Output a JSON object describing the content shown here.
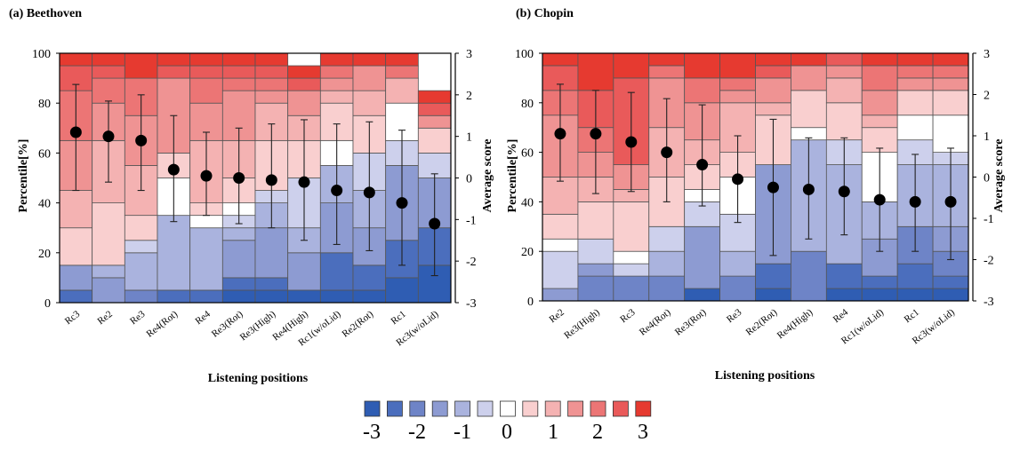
{
  "colors": [
    "#2f5db3",
    "#4b6ebd",
    "#6e84c7",
    "#8d9bd2",
    "#aab3de",
    "#cdd0ec",
    "#ffffff",
    "#f9cfcf",
    "#f4b2b2",
    "#ef9393",
    "#ec7575",
    "#e95a5a",
    "#e63a30"
  ],
  "legend": {
    "ticks": [
      "-3",
      "-2",
      "-1",
      "0",
      "1",
      "2",
      "3"
    ]
  },
  "chart_data": [
    {
      "type": "bar",
      "title": "(a) Beethoven",
      "xlabel": "Listening positions",
      "ylabel": "Percentile[%]",
      "y2label": "Average score",
      "ylim": [
        0,
        100
      ],
      "y2lim": [
        -3,
        3
      ],
      "yticks": [
        "0",
        "20",
        "40",
        "60",
        "80",
        "100"
      ],
      "y2ticks": [
        "-3",
        "-2",
        "-1",
        "0",
        "1",
        "2",
        "3"
      ],
      "categories": [
        "Rc3",
        "Re2",
        "Re3",
        "Re4(Rot)",
        "Re4",
        "Re3(Rot)",
        "Re3(High)",
        "Re4(High)",
        "Rc1(w/oLid)",
        "Re2(Rot)",
        "Rc1",
        "Rc3(w/oLid)"
      ],
      "stack_levels": [
        -3,
        -2.5,
        -2,
        -1.5,
        -1,
        -0.5,
        0,
        0.5,
        1,
        1.5,
        2,
        2.5,
        3
      ],
      "stacks": [
        [
          0,
          5,
          0,
          10,
          0,
          0,
          0,
          15,
          15,
          20,
          20,
          10,
          5
        ],
        [
          0,
          0,
          0,
          10,
          5,
          0,
          0,
          25,
          25,
          15,
          10,
          5,
          5
        ],
        [
          0,
          0,
          5,
          0,
          15,
          5,
          0,
          10,
          20,
          20,
          15,
          0,
          10
        ],
        [
          0,
          5,
          0,
          0,
          30,
          0,
          15,
          10,
          0,
          30,
          0,
          5,
          5
        ],
        [
          0,
          5,
          0,
          0,
          25,
          0,
          5,
          5,
          25,
          15,
          10,
          5,
          5
        ],
        [
          5,
          5,
          0,
          15,
          5,
          5,
          5,
          10,
          15,
          20,
          5,
          5,
          5
        ],
        [
          5,
          5,
          0,
          20,
          10,
          5,
          0,
          20,
          15,
          5,
          5,
          5,
          5
        ],
        [
          5,
          0,
          0,
          15,
          10,
          20,
          0,
          15,
          10,
          10,
          0,
          5,
          5
        ],
        [
          5,
          15,
          0,
          20,
          15,
          0,
          10,
          15,
          5,
          5,
          5,
          0,
          5
        ],
        [
          5,
          10,
          0,
          15,
          15,
          15,
          0,
          15,
          10,
          10,
          0,
          0,
          5
        ],
        [
          10,
          15,
          0,
          30,
          0,
          10,
          15,
          0,
          10,
          0,
          5,
          0,
          5
        ],
        [
          15,
          15,
          0,
          20,
          0,
          10,
          0,
          10,
          0,
          5,
          0,
          5,
          5
        ]
      ],
      "average_scores": [
        1.1,
        1.0,
        0.9,
        0.2,
        0.05,
        0.0,
        -0.05,
        -0.1,
        -0.3,
        -0.35,
        -0.6,
        -1.1
      ],
      "error_low": [
        -0.3,
        -0.1,
        -0.3,
        -1.05,
        -0.9,
        -1.1,
        -1.2,
        -1.5,
        -1.6,
        -1.75,
        -2.1,
        -2.35
      ],
      "error_high": [
        2.25,
        1.85,
        2.0,
        1.5,
        1.1,
        1.2,
        1.3,
        1.4,
        1.3,
        1.35,
        1.15,
        0.1
      ]
    },
    {
      "type": "bar",
      "title": "(b) Chopin",
      "xlabel": "Listening positions",
      "ylabel": "Percentile[%]",
      "y2label": "Average score",
      "ylim": [
        0,
        100
      ],
      "y2lim": [
        -3,
        3
      ],
      "yticks": [
        "0",
        "20",
        "40",
        "60",
        "80",
        "100"
      ],
      "y2ticks": [
        "-3",
        "-2",
        "-1",
        "0",
        "1",
        "2",
        "3"
      ],
      "categories": [
        "Re2",
        "Re3(High)",
        "Rc3",
        "Re4(Rot)",
        "Re3(Rot)",
        "Re3",
        "Re2(Rot)",
        "Re4(High)",
        "Re4",
        "Rc1(w/oLid)",
        "Rc1",
        "Rc3(w/oLid)"
      ],
      "stack_levels": [
        -3,
        -2.5,
        -2,
        -1.5,
        -1,
        -0.5,
        0,
        0.5,
        1,
        1.5,
        2,
        2.5,
        3
      ],
      "stacks": [
        [
          0,
          0,
          0,
          5,
          0,
          15,
          5,
          10,
          15,
          25,
          10,
          10,
          5
        ],
        [
          0,
          0,
          10,
          5,
          0,
          10,
          0,
          15,
          10,
          10,
          10,
          15,
          15
        ],
        [
          0,
          0,
          10,
          0,
          0,
          5,
          5,
          20,
          5,
          10,
          0,
          35,
          10
        ],
        [
          0,
          0,
          10,
          0,
          10,
          10,
          0,
          20,
          20,
          20,
          5,
          0,
          5
        ],
        [
          5,
          0,
          0,
          25,
          0,
          10,
          5,
          10,
          10,
          15,
          10,
          0,
          10
        ],
        [
          0,
          0,
          10,
          0,
          10,
          15,
          15,
          10,
          20,
          5,
          5,
          0,
          10
        ],
        [
          5,
          10,
          0,
          40,
          0,
          0,
          0,
          20,
          5,
          10,
          0,
          5,
          5
        ],
        [
          0,
          0,
          20,
          0,
          45,
          0,
          5,
          15,
          0,
          10,
          0,
          0,
          5
        ],
        [
          5,
          10,
          0,
          0,
          40,
          10,
          0,
          15,
          10,
          5,
          0,
          5,
          0
        ],
        [
          5,
          5,
          0,
          15,
          15,
          0,
          20,
          10,
          5,
          10,
          10,
          0,
          5
        ],
        [
          5,
          10,
          15,
          0,
          25,
          10,
          10,
          10,
          0,
          5,
          5,
          0,
          5
        ],
        [
          5,
          5,
          10,
          10,
          25,
          5,
          15,
          10,
          0,
          5,
          5,
          0,
          5
        ]
      ],
      "average_scores": [
        1.05,
        1.05,
        0.85,
        0.6,
        0.3,
        -0.05,
        -0.25,
        -0.3,
        -0.35,
        -0.55,
        -0.6,
        -0.6
      ],
      "error_low": [
        -0.1,
        -0.4,
        -0.35,
        -0.6,
        -0.7,
        -1.1,
        -1.9,
        -1.5,
        -1.4,
        -1.8,
        -1.8,
        -2.0
      ],
      "error_high": [
        2.25,
        2.1,
        2.05,
        1.9,
        1.75,
        1.0,
        1.4,
        0.95,
        0.95,
        0.7,
        0.55,
        0.7
      ]
    }
  ]
}
